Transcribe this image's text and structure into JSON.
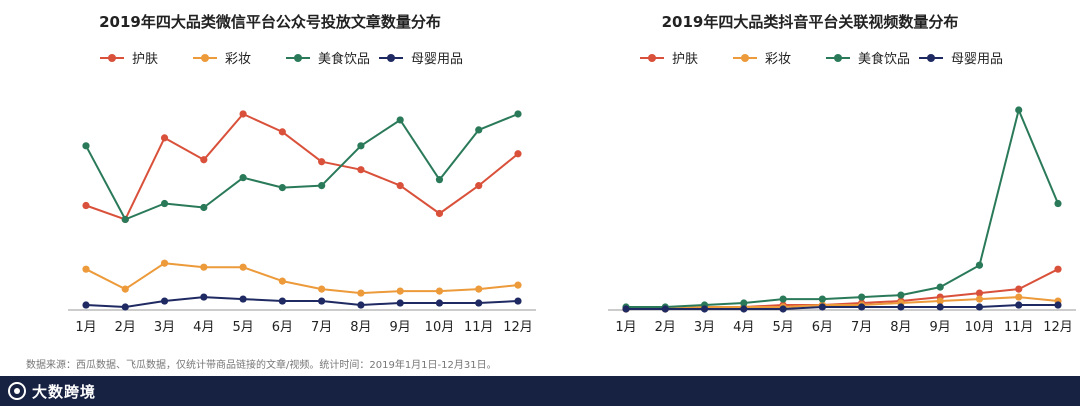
{
  "chart_data": [
    {
      "type": "line",
      "title": "2019年四大品类微信平台公众号投放文章数量分布",
      "categories": [
        "1月",
        "2月",
        "3月",
        "4月",
        "5月",
        "6月",
        "7月",
        "8月",
        "9月",
        "10月",
        "11月",
        "12月"
      ],
      "ylim": [
        0,
        100
      ],
      "series": [
        {
          "name": "护肤",
          "color": "#d9513a",
          "values": [
            52,
            45,
            86,
            75,
            98,
            89,
            74,
            70,
            62,
            48,
            62,
            78
          ]
        },
        {
          "name": "彩妆",
          "color": "#ec9a3a",
          "values": [
            20,
            10,
            23,
            21,
            21,
            14,
            10,
            8,
            9,
            9,
            10,
            12
          ]
        },
        {
          "name": "美食饮品",
          "color": "#2a7a5a",
          "values": [
            82,
            45,
            53,
            51,
            66,
            61,
            62,
            82,
            95,
            65,
            90,
            98
          ]
        },
        {
          "name": "母婴用品",
          "color": "#1f2a63",
          "values": [
            2,
            1,
            4,
            6,
            5,
            4,
            4,
            2,
            3,
            3,
            3,
            4
          ]
        }
      ]
    },
    {
      "type": "line",
      "title": "2019年四大品类抖音平台关联视频数量分布",
      "categories": [
        "1月",
        "2月",
        "3月",
        "4月",
        "5月",
        "6月",
        "7月",
        "8月",
        "9月",
        "10月",
        "11月",
        "12月"
      ],
      "ylim": [
        0,
        100
      ],
      "series": [
        {
          "name": "护肤",
          "color": "#d9513a",
          "values": [
            0,
            0,
            1,
            1,
            2,
            2,
            3,
            4,
            6,
            8,
            10,
            20
          ]
        },
        {
          "name": "彩妆",
          "color": "#ec9a3a",
          "values": [
            0,
            0,
            1,
            1,
            1,
            2,
            2,
            3,
            4,
            5,
            6,
            4
          ]
        },
        {
          "name": "美食饮品",
          "color": "#2a7a5a",
          "values": [
            1,
            1,
            2,
            3,
            5,
            5,
            6,
            7,
            11,
            22,
            100,
            53
          ]
        },
        {
          "name": "母婴用品",
          "color": "#1f2a63",
          "values": [
            0,
            0,
            0,
            0,
            0,
            1,
            1,
            1,
            1,
            1,
            2,
            2
          ]
        }
      ]
    }
  ],
  "footer": {
    "source": "数据来源：西瓜数据、飞瓜数据，仅统计带商品链接的文章/视频。统计时间：2019年1月1日-12月31日。",
    "brand": "大数跨境"
  }
}
